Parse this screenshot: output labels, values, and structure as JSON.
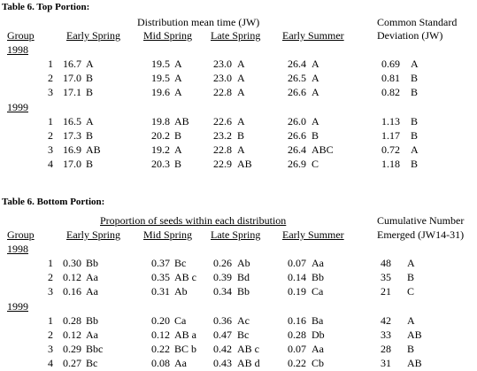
{
  "sections": [
    {
      "title": "Table 6.  Top Portion:",
      "span_header": "Distribution mean time (JW)",
      "side_header": [
        "Common Standard",
        "Deviation (JW)"
      ],
      "group_label": "Group",
      "columns": [
        "Early Spring",
        "Mid Spring",
        "Late Spring",
        "Early Summer"
      ],
      "groups": [
        {
          "year": "1998",
          "rows": [
            [
              "1",
              [
                "16.7",
                "A"
              ],
              [
                "19.5",
                "A"
              ],
              [
                "23.0",
                "A"
              ],
              [
                "26.4",
                "A"
              ],
              [
                "0.69",
                "A"
              ]
            ],
            [
              "2",
              [
                "17.0",
                "B"
              ],
              [
                "19.5",
                "A"
              ],
              [
                "23.0",
                "A"
              ],
              [
                "26.5",
                "A"
              ],
              [
                "0.81",
                "B"
              ]
            ],
            [
              "3",
              [
                "17.1",
                "B"
              ],
              [
                "19.6",
                "A"
              ],
              [
                "22.8",
                "A"
              ],
              [
                "26.6",
                "A"
              ],
              [
                "0.82",
                "B"
              ]
            ]
          ]
        },
        {
          "year": "1999",
          "rows": [
            [
              "1",
              [
                "16.5",
                "A"
              ],
              [
                "19.8",
                "AB"
              ],
              [
                "22.6",
                "A"
              ],
              [
                "26.0",
                "A"
              ],
              [
                "1.13",
                "B"
              ]
            ],
            [
              "2",
              [
                "17.3",
                "B"
              ],
              [
                "20.2",
                "B"
              ],
              [
                "23.2",
                "B"
              ],
              [
                "26.6",
                "B"
              ],
              [
                "1.17",
                "B"
              ]
            ],
            [
              "3",
              [
                "16.9",
                "AB"
              ],
              [
                "19.2",
                "A"
              ],
              [
                "22.8",
                "A"
              ],
              [
                "26.4",
                "ABC"
              ],
              [
                "0.72",
                "A"
              ]
            ],
            [
              "4",
              [
                "17.0",
                "B"
              ],
              [
                "20.3",
                "B"
              ],
              [
                "22.9",
                "AB"
              ],
              [
                "26.9",
                "C"
              ],
              [
                "1.18",
                "B"
              ]
            ]
          ]
        }
      ]
    },
    {
      "title": "Table 6.  Bottom Portion:",
      "span_header": "Proportion of seeds within  each distribution",
      "side_header": [
        "Cumulative Number",
        "Emerged (JW14-31)"
      ],
      "group_label": "Group",
      "columns": [
        "Early Spring",
        "Mid Spring",
        "Late Spring",
        "Early Summer"
      ],
      "groups": [
        {
          "year": "1998",
          "rows": [
            [
              "1",
              [
                "0.30",
                "Bb"
              ],
              [
                "0.37",
                "Bc"
              ],
              [
                "0.26",
                "Ab"
              ],
              [
                "0.07",
                "Aa"
              ],
              [
                "48",
                "A"
              ]
            ],
            [
              "2",
              [
                "0.12",
                "Aa"
              ],
              [
                "0.35",
                "AB c"
              ],
              [
                "0.39",
                "Bd"
              ],
              [
                "0.14",
                "Bb"
              ],
              [
                "35",
                "B"
              ]
            ],
            [
              "3",
              [
                "0.16",
                "Aa"
              ],
              [
                "0.31",
                "Ab"
              ],
              [
                "0.34",
                "Bb"
              ],
              [
                "0.19",
                "Ca"
              ],
              [
                "21",
                "C"
              ]
            ]
          ]
        },
        {
          "year": "1999",
          "rows": [
            [
              "1",
              [
                "0.28",
                "Bb"
              ],
              [
                "0.20",
                "Ca"
              ],
              [
                "0.36",
                "Ac"
              ],
              [
                "0.16",
                "Ba"
              ],
              [
                "42",
                "A"
              ]
            ],
            [
              "2",
              [
                "0.12",
                "Aa"
              ],
              [
                "0.12",
                "AB a"
              ],
              [
                "0.47",
                "Bc"
              ],
              [
                "0.28",
                "Db"
              ],
              [
                "33",
                "AB"
              ]
            ],
            [
              "3",
              [
                "0.29",
                "Bbc"
              ],
              [
                "0.22",
                "BC b"
              ],
              [
                "0.42",
                "AB c"
              ],
              [
                "0.07",
                "Aa"
              ],
              [
                "28",
                "B"
              ]
            ],
            [
              "4",
              [
                "0.27",
                "Bc"
              ],
              [
                "0.08",
                "Aa"
              ],
              [
                "0.43",
                "AB d"
              ],
              [
                "0.22",
                "Cb"
              ],
              [
                "31",
                "AB"
              ]
            ]
          ]
        }
      ]
    }
  ]
}
